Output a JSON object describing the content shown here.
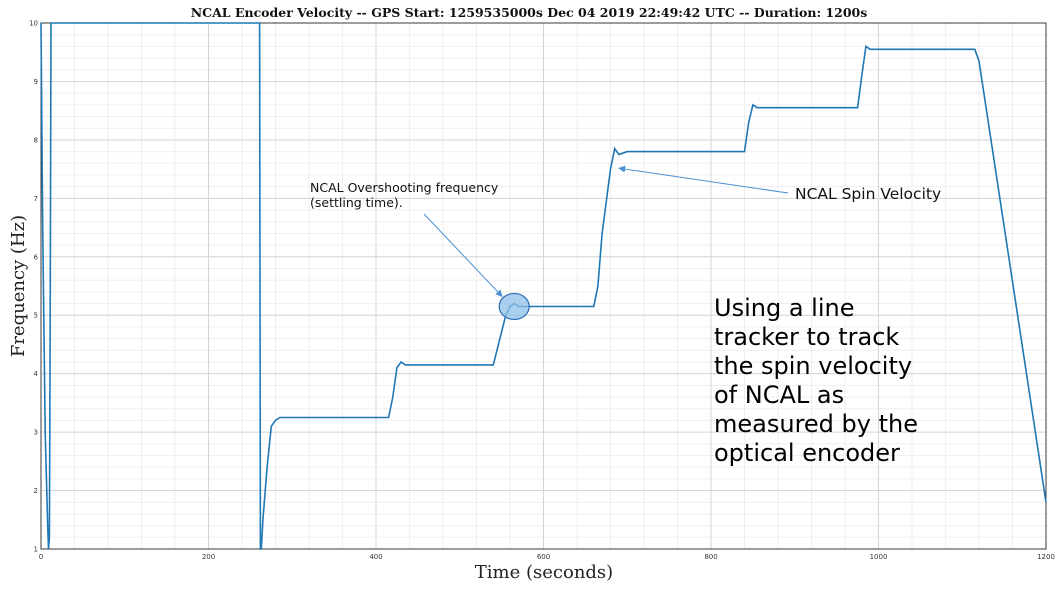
{
  "chart_data": {
    "type": "line",
    "title": "NCAL Encoder Velocity -- GPS Start: 1259535000s Dec 04 2019 22:49:42 UTC -- Duration: 1200s",
    "xlabel": "Time (seconds)",
    "ylabel": "Frequency (Hz)",
    "xlim": [
      0,
      1200
    ],
    "ylim": [
      1,
      10
    ],
    "xticks": [
      "0",
      "200",
      "400",
      "600",
      "800",
      "1000",
      "1200"
    ],
    "yticks": [
      "1",
      "2",
      "3",
      "4",
      "5",
      "6",
      "7",
      "8",
      "9",
      "10"
    ],
    "grid": true,
    "series": [
      {
        "name": "",
        "color": "#1f77b4",
        "x": [
          0,
          2,
          5,
          8,
          9,
          10,
          11,
          12,
          200,
          261,
          262,
          263,
          265,
          270,
          275,
          280,
          285,
          290,
          300,
          350,
          415,
          420,
          425,
          430,
          435,
          440,
          450,
          500,
          540,
          555,
          560,
          565,
          570,
          580,
          600,
          660,
          665,
          670,
          680,
          685,
          690,
          700,
          800,
          840,
          845,
          850,
          855,
          860,
          870,
          975,
          980,
          985,
          990,
          995,
          1000,
          1010,
          1100,
          1115,
          1120,
          1200
        ],
        "y": [
          10,
          6.5,
          3.0,
          1.4,
          1.0,
          1.2,
          5.0,
          10,
          10,
          10,
          1.0,
          1.0,
          1.5,
          2.4,
          3.1,
          3.2,
          3.25,
          3.25,
          3.25,
          3.25,
          3.25,
          3.6,
          4.1,
          4.2,
          4.15,
          4.15,
          4.15,
          4.15,
          4.15,
          5.0,
          5.15,
          5.2,
          5.15,
          5.15,
          5.15,
          5.15,
          5.5,
          6.4,
          7.5,
          7.85,
          7.75,
          7.8,
          7.8,
          7.8,
          8.3,
          8.6,
          8.55,
          8.55,
          8.55,
          8.55,
          9.1,
          9.6,
          9.55,
          9.55,
          9.55,
          9.55,
          9.55,
          9.55,
          9.35,
          1.8
        ]
      }
    ],
    "annotations": [
      {
        "text_lines": [
          "NCAL Overshooting frequency",
          "(settling time)."
        ],
        "points_to": [
          565,
          5.15
        ]
      },
      {
        "text_lines": [
          "NCAL Spin Velocity"
        ],
        "points_to": [
          690,
          7.55
        ]
      },
      {
        "text_lines": [
          "Using a line",
          "tracker to track",
          "the spin velocity",
          "of NCAL as",
          "measured by the",
          "optical  encoder"
        ]
      }
    ]
  }
}
